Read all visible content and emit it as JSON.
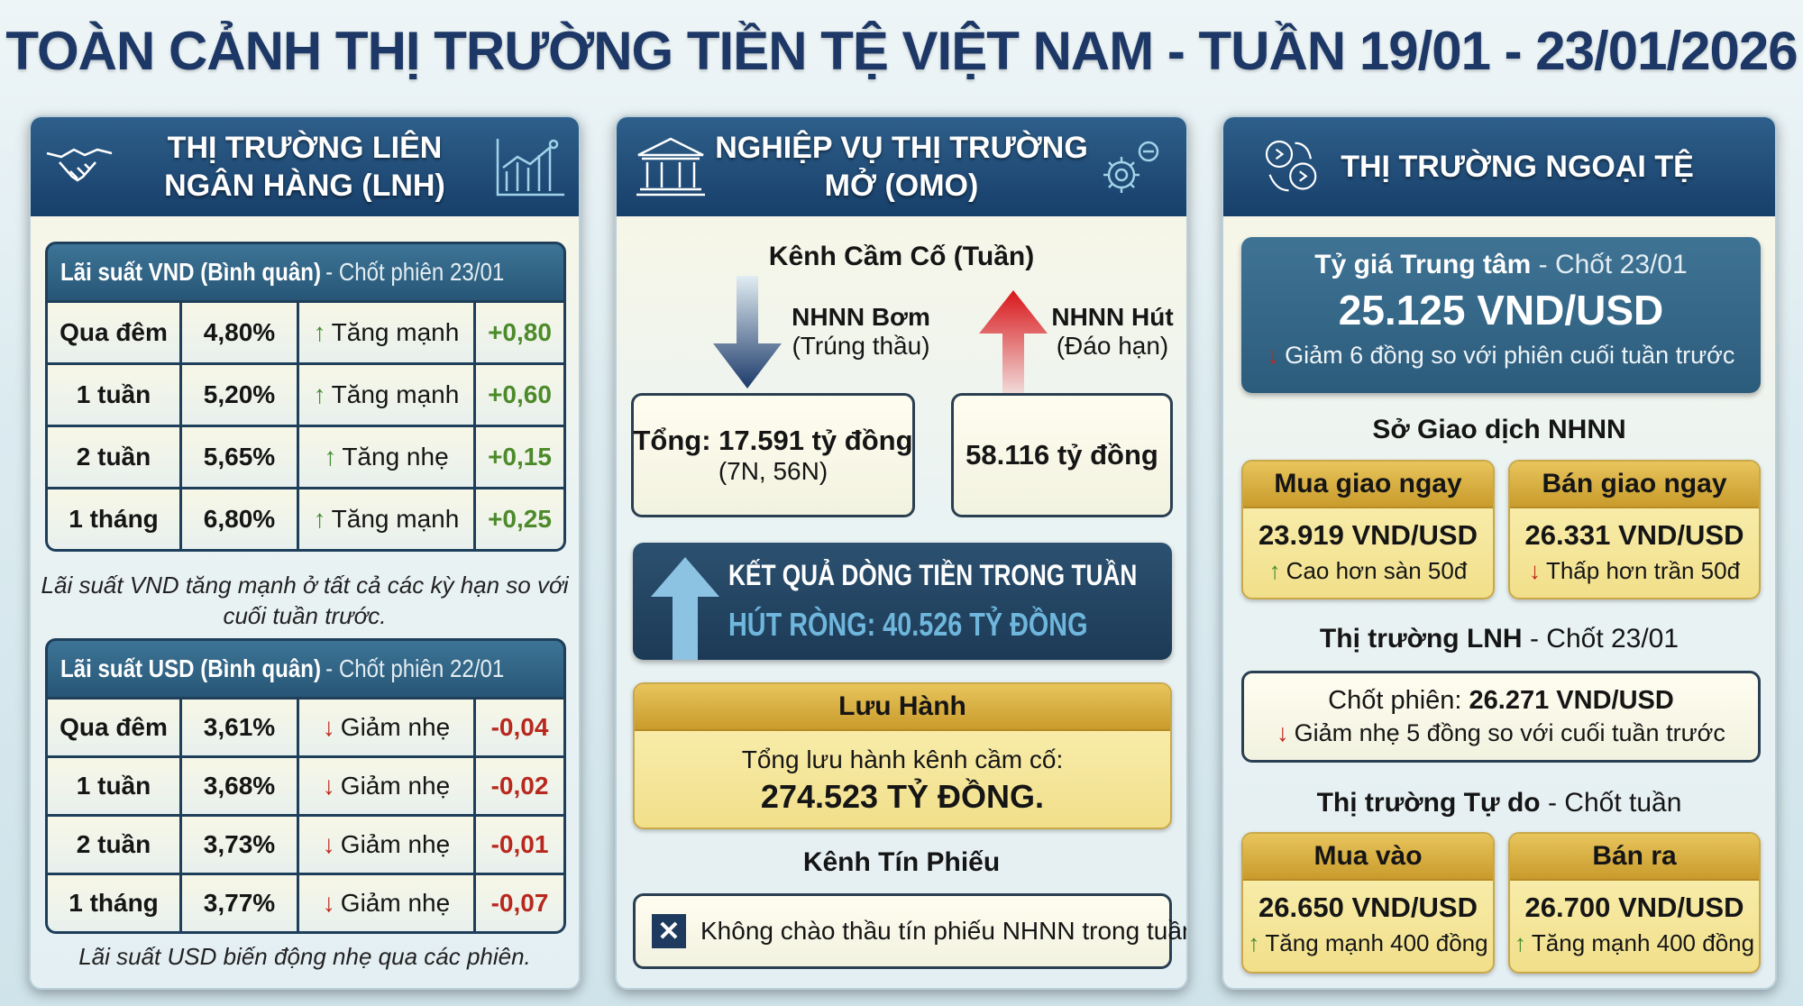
{
  "title": "TOÀN CẢNH THỊ TRƯỜNG TIỀN TỆ VIỆT NAM - TUẦN 19/01 - 23/01/2026",
  "colors": {
    "navy": "#1d3866",
    "up_green": "#3f8a2a",
    "down_red": "#c0281e",
    "gold": "#e8c55c"
  },
  "lnh": {
    "header": "THỊ TRƯỜNG LIÊN NGÂN HÀNG (LNH)",
    "icons": [
      "handshake-icon",
      "bar-chart-icon"
    ],
    "vnd": {
      "title": "Lãi suất VND (Bình quân)",
      "date": "- Chốt phiên 23/01",
      "rows": [
        {
          "term": "Qua đêm",
          "rate": "4,80%",
          "status": "Tăng mạnh",
          "change": "+0,80",
          "dir": "up"
        },
        {
          "term": "1 tuần",
          "rate": "5,20%",
          "status": "Tăng mạnh",
          "change": "+0,60",
          "dir": "up"
        },
        {
          "term": "2 tuần",
          "rate": "5,65%",
          "status": "Tăng nhẹ",
          "change": "+0,15",
          "dir": "up"
        },
        {
          "term": "1 tháng",
          "rate": "6,80%",
          "status": "Tăng mạnh",
          "change": "+0,25",
          "dir": "up"
        }
      ],
      "note": "Lãi suất VND tăng mạnh ở tất cả các kỳ hạn so với cuối tuần trước."
    },
    "usd": {
      "title": "Lãi suất USD (Bình quân)",
      "date": "- Chốt phiên 22/01",
      "rows": [
        {
          "term": "Qua đêm",
          "rate": "3,61%",
          "status": "Giảm nhẹ",
          "change": "-0,04",
          "dir": "down"
        },
        {
          "term": "1 tuần",
          "rate": "3,68%",
          "status": "Giảm nhẹ",
          "change": "-0,02",
          "dir": "down"
        },
        {
          "term": "2 tuần",
          "rate": "3,73%",
          "status": "Giảm nhẹ",
          "change": "-0,01",
          "dir": "down"
        },
        {
          "term": "1 tháng",
          "rate": "3,77%",
          "status": "Giảm nhẹ",
          "change": "-0,07",
          "dir": "down"
        }
      ],
      "note": "Lãi suất USD biến động nhẹ qua các phiên."
    }
  },
  "omo": {
    "header_line1": "NGHIỆP VỤ THỊ TRƯỜNG",
    "header_line2": "MỞ (OMO)",
    "icons": [
      "bank-building-icon",
      "gear-icon"
    ],
    "channel_title": "Kênh Cầm Cố (Tuần)",
    "pump": {
      "label": "NHNN Bơm",
      "sub": "(Trúng thầu)",
      "total": "Tổng: 17.591 tỷ đồng",
      "terms": "(7N, 56N)"
    },
    "absorb": {
      "label": "NHNN Hút",
      "sub": "(Đáo hạn)",
      "total": "58.116 tỷ đồng"
    },
    "result": {
      "title": "KẾT QUẢ DÒNG TIỀN TRONG TUẦN",
      "value": "HÚT RÒNG: 40.526 TỶ ĐỒNG"
    },
    "outstanding": {
      "title": "Lưu Hành",
      "label": "Tổng lưu hành kênh cầm cố:",
      "value": "274.523 TỶ ĐỒNG."
    },
    "bills_title": "Kênh Tín Phiếu",
    "bills_note": "Không chào thầu tín phiếu NHNN trong tuần."
  },
  "fx": {
    "header": "THỊ TRƯỜNG NGOẠI TỆ",
    "icons": [
      "currency-exchange-icon"
    ],
    "central": {
      "title": "Tỷ giá Trung tâm",
      "date": "- Chốt 23/01",
      "value": "25.125 VND/USD",
      "note": "Giảm 6 đồng so với phiên cuối tuần trước"
    },
    "sbv_title": "Sở Giao dịch NHNN",
    "spot_buy": {
      "title": "Mua giao ngay",
      "value": "23.919 VND/USD",
      "note": "Cao hơn sàn 50đ"
    },
    "spot_sell": {
      "title": "Bán giao ngay",
      "value": "26.331 VND/USD",
      "note": "Thấp hơn trần 50đ"
    },
    "interbank": {
      "title": "Thị trường LNH",
      "date": "- Chốt 23/01",
      "label": "Chốt phiên:",
      "value": "26.271 VND/USD",
      "note": "Giảm nhẹ 5 đồng so với cuối tuần trước"
    },
    "free": {
      "title": "Thị trường Tự do",
      "date": "- Chốt tuần"
    },
    "free_buy": {
      "title": "Mua vào",
      "value": "26.650 VND/USD",
      "note": "Tăng mạnh 400 đồng"
    },
    "free_sell": {
      "title": "Bán ra",
      "value": "26.700 VND/USD",
      "note": "Tăng mạnh 400 đồng"
    }
  }
}
